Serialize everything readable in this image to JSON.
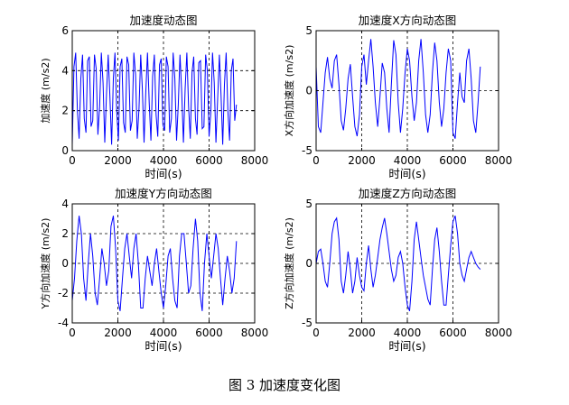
{
  "figure_caption": "图 3 加速度变化图",
  "chart_data": [
    {
      "type": "line",
      "title": "加速度动态图",
      "xlabel": "时间(s)",
      "ylabel": "加速度 (m/s2)",
      "xlim": [
        0,
        8000
      ],
      "ylim": [
        0,
        6
      ],
      "xticks": [
        0,
        2000,
        4000,
        6000,
        8000
      ],
      "yticks": [
        0,
        2,
        4,
        6
      ],
      "grid": true,
      "series": [
        {
          "color": "#0000ff",
          "x": [
            0,
            75,
            150,
            225,
            300,
            375,
            450,
            525,
            600,
            675,
            750,
            825,
            900,
            975,
            1050,
            1125,
            1200,
            1275,
            1350,
            1425,
            1500,
            1575,
            1650,
            1725,
            1800,
            1875,
            1950,
            2025,
            2100,
            2175,
            2250,
            2325,
            2400,
            2475,
            2550,
            2625,
            2700,
            2775,
            2850,
            2925,
            3000,
            3075,
            3150,
            3225,
            3300,
            3375,
            3450,
            3525,
            3600,
            3675,
            3750,
            3825,
            3900,
            3975,
            4050,
            4125,
            4200,
            4275,
            4350,
            4425,
            4500,
            4575,
            4650,
            4725,
            4800,
            4875,
            4950,
            5025,
            5100,
            5175,
            5250,
            5325,
            5400,
            5475,
            5550,
            5625,
            5700,
            5775,
            5850,
            5925,
            6000,
            6075,
            6150,
            6225,
            6300,
            6375,
            6450,
            6525,
            6600,
            6675,
            6750,
            6825,
            6900,
            6975,
            7050,
            7125,
            7200
          ],
          "y": [
            0.3,
            4.2,
            4.9,
            2.0,
            0.6,
            3.6,
            4.8,
            1.6,
            0.9,
            4.5,
            4.7,
            1.2,
            1.5,
            4.8,
            4.1,
            0.8,
            2.2,
            4.9,
            3.4,
            0.4,
            2.8,
            4.8,
            2.7,
            0.3,
            3.6,
            4.9,
            2.0,
            0.5,
            4.2,
            4.6,
            1.4,
            0.9,
            4.7,
            4.3,
            1.0,
            1.5,
            4.9,
            3.8,
            0.6,
            2.1,
            4.8,
            3.1,
            0.4,
            2.9,
            4.9,
            2.4,
            0.5,
            3.7,
            4.8,
            1.8,
            0.7,
            4.3,
            4.6,
            1.3,
            1.0,
            4.7,
            4.2,
            0.9,
            1.6,
            4.9,
            3.6,
            0.5,
            2.3,
            4.8,
            2.9,
            0.4,
            3.1,
            4.9,
            2.2,
            0.6,
            3.9,
            4.7,
            1.6,
            0.8,
            4.4,
            4.5,
            1.1,
            1.2,
            4.8,
            4.0,
            0.7,
            1.9,
            4.9,
            3.4,
            0.4,
            2.6,
            4.8,
            2.7,
            0.3,
            3.3,
            4.9,
            2.0,
            0.5,
            4.0,
            4.6,
            1.5,
            2.3
          ]
        }
      ]
    },
    {
      "type": "line",
      "title": "加速度X方向动态图",
      "xlabel": "时间(s)",
      "ylabel": "X方向加速度 (m/s2)",
      "xlim": [
        0,
        8000
      ],
      "ylim": [
        -5,
        5
      ],
      "xticks": [
        0,
        2000,
        4000,
        6000,
        8000
      ],
      "yticks": [
        -5,
        0,
        5
      ],
      "grid": true,
      "series": [
        {
          "color": "#0000ff",
          "x": [
            0,
            100,
            200,
            300,
            400,
            500,
            600,
            700,
            800,
            900,
            1000,
            1100,
            1200,
            1300,
            1400,
            1500,
            1600,
            1700,
            1800,
            1900,
            2000,
            2100,
            2200,
            2300,
            2400,
            2500,
            2600,
            2700,
            2800,
            2900,
            3000,
            3100,
            3200,
            3300,
            3400,
            3500,
            3600,
            3700,
            3800,
            3900,
            4000,
            4100,
            4200,
            4300,
            4400,
            4500,
            4600,
            4700,
            4800,
            4900,
            5000,
            5100,
            5200,
            5300,
            5400,
            5500,
            5600,
            5700,
            5800,
            5900,
            6000,
            6100,
            6200,
            6300,
            6400,
            6500,
            6600,
            6700,
            6800,
            6900,
            7000,
            7100,
            7200
          ],
          "y": [
            2.0,
            -3.0,
            -3.5,
            -1.0,
            1.5,
            2.8,
            1.0,
            0.2,
            2.5,
            3.0,
            0.5,
            -2.5,
            -3.3,
            -1.5,
            1.0,
            2.2,
            -0.5,
            -3.0,
            -3.8,
            -2.0,
            2.0,
            3.0,
            0.5,
            2.5,
            4.3,
            2.0,
            -1.0,
            -3.0,
            -0.5,
            2.3,
            1.5,
            -1.5,
            -3.5,
            0.5,
            4.2,
            3.0,
            -1.0,
            -3.5,
            -1.5,
            1.5,
            3.5,
            2.5,
            -0.5,
            -2.5,
            -1.0,
            2.5,
            4.3,
            1.5,
            -2.0,
            -3.5,
            -2.0,
            1.5,
            4.0,
            2.5,
            -1.0,
            -3.0,
            -1.5,
            1.5,
            3.5,
            2.5,
            -3.5,
            -4.0,
            -1.0,
            1.5,
            -0.5,
            -1.0,
            2.5,
            3.5,
            1.0,
            -2.5,
            -3.5,
            -1.0,
            2.0
          ]
        }
      ]
    },
    {
      "type": "line",
      "title": "加速度Y方向动态图",
      "xlabel": "时间(s)",
      "ylabel": "Y方向加速度 (m/s2)",
      "xlim": [
        0,
        8000
      ],
      "ylim": [
        -4,
        4
      ],
      "xticks": [
        0,
        2000,
        4000,
        6000,
        8000
      ],
      "yticks": [
        -4,
        -2,
        0,
        2,
        4
      ],
      "grid": true,
      "series": [
        {
          "color": "#0000ff",
          "x": [
            0,
            100,
            200,
            300,
            400,
            500,
            600,
            700,
            800,
            900,
            1000,
            1100,
            1200,
            1300,
            1400,
            1500,
            1600,
            1700,
            1800,
            1900,
            2000,
            2100,
            2200,
            2300,
            2400,
            2500,
            2600,
            2700,
            2800,
            2900,
            3000,
            3100,
            3200,
            3300,
            3400,
            3500,
            3600,
            3700,
            3800,
            3900,
            4000,
            4100,
            4200,
            4300,
            4400,
            4500,
            4600,
            4700,
            4800,
            4900,
            5000,
            5100,
            5200,
            5300,
            5400,
            5500,
            5600,
            5700,
            5800,
            5900,
            6000,
            6100,
            6200,
            6300,
            6400,
            6500,
            6600,
            6700,
            6800,
            6900,
            7000,
            7100,
            7200
          ],
          "y": [
            -2.5,
            -1.0,
            1.5,
            3.2,
            2.0,
            -1.0,
            -2.5,
            0.0,
            2.0,
            0.5,
            -2.0,
            -2.8,
            -1.0,
            1.0,
            0.0,
            -1.5,
            -0.5,
            2.5,
            3.2,
            1.0,
            -2.5,
            -3.2,
            -1.0,
            1.0,
            2.0,
            0.5,
            -1.0,
            1.0,
            2.0,
            0.0,
            -3.0,
            -3.0,
            -1.0,
            0.5,
            -0.5,
            -1.5,
            0.0,
            1.0,
            -0.5,
            -2.0,
            -3.0,
            -1.5,
            0.5,
            1.0,
            -1.0,
            -2.5,
            -3.0,
            0.5,
            2.0,
            2.0,
            0.0,
            -2.0,
            -1.5,
            1.0,
            3.0,
            1.5,
            -2.0,
            -3.2,
            0.0,
            2.0,
            0.5,
            -1.0,
            0.5,
            2.0,
            1.0,
            -1.0,
            -2.8,
            -1.0,
            0.5,
            -0.5,
            -2.0,
            -1.0,
            1.5
          ]
        }
      ]
    },
    {
      "type": "line",
      "title": "加速度Z方向动态图",
      "xlabel": "时间(s)",
      "ylabel": "Z方向加速度 (m/s2)",
      "xlim": [
        0,
        8000
      ],
      "ylim": [
        -5,
        5
      ],
      "xticks": [
        0,
        2000,
        4000,
        6000,
        8000
      ],
      "yticks": [
        -5,
        0,
        5
      ],
      "grid": true,
      "series": [
        {
          "color": "#0000ff",
          "x": [
            0,
            100,
            200,
            300,
            400,
            500,
            600,
            700,
            800,
            900,
            1000,
            1100,
            1200,
            1300,
            1400,
            1500,
            1600,
            1700,
            1800,
            1900,
            2000,
            2100,
            2200,
            2300,
            2400,
            2500,
            2600,
            2700,
            2800,
            2900,
            3000,
            3100,
            3200,
            3300,
            3400,
            3500,
            3600,
            3700,
            3800,
            3900,
            4000,
            4100,
            4200,
            4300,
            4400,
            4500,
            4600,
            4700,
            4800,
            4900,
            5000,
            5100,
            5200,
            5300,
            5400,
            5500,
            5600,
            5700,
            5800,
            5900,
            6000,
            6100,
            6200,
            6300,
            6400,
            6500,
            6600,
            6700,
            6800,
            6900,
            7000,
            7100,
            7200
          ],
          "y": [
            0.0,
            1.0,
            1.2,
            0.0,
            -1.5,
            -2.0,
            0.0,
            2.5,
            3.5,
            3.8,
            2.0,
            -1.5,
            -2.5,
            -1.0,
            1.0,
            -0.5,
            -2.5,
            -1.5,
            0.5,
            -1.0,
            -2.0,
            -2.3,
            0.0,
            1.5,
            -0.5,
            -2.0,
            -1.0,
            0.5,
            2.0,
            3.0,
            3.8,
            2.5,
            1.0,
            -0.5,
            -1.5,
            -1.0,
            0.5,
            1.0,
            0.0,
            -2.0,
            -3.5,
            -4.0,
            -1.5,
            2.0,
            3.5,
            2.0,
            0.5,
            -1.0,
            -2.0,
            -3.0,
            -3.5,
            -0.5,
            2.0,
            3.0,
            1.0,
            -1.5,
            -3.5,
            -3.5,
            -1.0,
            1.5,
            3.5,
            4.0,
            2.5,
            0.0,
            -1.0,
            -1.5,
            -0.5,
            0.5,
            1.0,
            0.5,
            0.0,
            -0.3,
            -0.5
          ]
        }
      ]
    }
  ]
}
